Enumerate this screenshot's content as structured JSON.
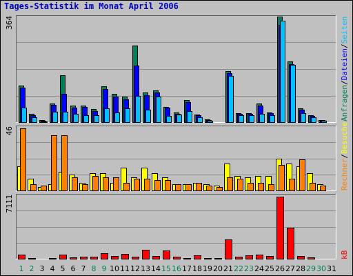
{
  "title": "Tages-Statistik im Monat April 2006",
  "colors": {
    "frame_bg": "#c0c0c0",
    "plot_bg": "#c0c0c0",
    "grid": "#8c8c8c",
    "anfragen": "#00805c",
    "dateien": "#0000ff",
    "seiten": "#00c0ff",
    "besuche": "#ffff00",
    "rechner": "#ff8000",
    "kb": "#ff0000",
    "weekday": "#000000",
    "weekend": "#00805c"
  },
  "chart_data": [
    {
      "type": "bar",
      "name": "hits-files-pages",
      "ymax_label": "364",
      "ylim": [
        0,
        364
      ],
      "grid": true,
      "categories": [
        "1",
        "2",
        "3",
        "4",
        "5",
        "6",
        "7",
        "8",
        "9",
        "10",
        "11",
        "12",
        "13",
        "14",
        "15",
        "16",
        "17",
        "18",
        "19",
        "20",
        "21",
        "22",
        "23",
        "24",
        "25",
        "26",
        "27",
        "28",
        "29",
        "30",
        "31"
      ],
      "series": [
        {
          "name": "Anfragen",
          "values": [
            127,
            30,
            10,
            65,
            164,
            60,
            58,
            47,
            125,
            100,
            90,
            264,
            105,
            111,
            55,
            35,
            78,
            28,
            12,
            0,
            177,
            32,
            32,
            65,
            36,
            364,
            210,
            50,
            25,
            10,
            0
          ]
        },
        {
          "name": "Dateien",
          "values": [
            120,
            27,
            8,
            62,
            100,
            52,
            55,
            40,
            115,
            90,
            80,
            195,
            95,
            105,
            52,
            30,
            72,
            25,
            10,
            0,
            170,
            30,
            30,
            60,
            34,
            335,
            200,
            46,
            23,
            9,
            0
          ]
        },
        {
          "name": "Seiten",
          "values": [
            53,
            20,
            5,
            37,
            38,
            30,
            27,
            25,
            50,
            35,
            50,
            92,
            45,
            90,
            24,
            28,
            40,
            20,
            8,
            0,
            160,
            25,
            25,
            30,
            25,
            350,
            198,
            33,
            20,
            8,
            0
          ]
        }
      ]
    },
    {
      "type": "bar",
      "name": "visits-sites",
      "ymax_label": "46",
      "ylim": [
        0,
        46
      ],
      "grid": true,
      "categories": [
        "1",
        "2",
        "3",
        "4",
        "5",
        "6",
        "7",
        "8",
        "9",
        "10",
        "11",
        "12",
        "13",
        "14",
        "15",
        "16",
        "17",
        "18",
        "19",
        "20",
        "21",
        "22",
        "23",
        "24",
        "25",
        "26",
        "27",
        "28",
        "29",
        "30",
        "31"
      ],
      "series": [
        {
          "name": "Besuche",
          "values": [
            18,
            9,
            3,
            5,
            14,
            12,
            6,
            13,
            13,
            6,
            17,
            10,
            17,
            13,
            10,
            5,
            5,
            6,
            5,
            4,
            20,
            11,
            10,
            11,
            11,
            24,
            20,
            18,
            13,
            5,
            0
          ]
        },
        {
          "name": "Rechner",
          "values": [
            46,
            5,
            4,
            41,
            41,
            10,
            5,
            11,
            10,
            10,
            6,
            9,
            9,
            8,
            8,
            5,
            5,
            6,
            4,
            3,
            10,
            9,
            6,
            6,
            5,
            19,
            9,
            23,
            6,
            4,
            0
          ]
        }
      ]
    },
    {
      "type": "bar",
      "name": "kbytes",
      "ymax_label": "7111",
      "ylim": [
        0,
        7111
      ],
      "grid": true,
      "categories": [
        "1",
        "2",
        "3",
        "4",
        "5",
        "6",
        "7",
        "8",
        "9",
        "10",
        "11",
        "12",
        "13",
        "14",
        "15",
        "16",
        "17",
        "18",
        "19",
        "20",
        "21",
        "22",
        "23",
        "24",
        "25",
        "26",
        "27",
        "28",
        "29",
        "30",
        "31"
      ],
      "series": [
        {
          "name": "KB",
          "values": [
            580,
            130,
            110,
            160,
            560,
            260,
            280,
            280,
            720,
            400,
            600,
            330,
            1090,
            360,
            980,
            310,
            180,
            440,
            150,
            150,
            2260,
            290,
            480,
            550,
            410,
            7111,
            3560,
            360,
            260,
            110,
            0
          ]
        }
      ]
    }
  ],
  "x_labels": [
    "1",
    "2",
    "3",
    "4",
    "5",
    "6",
    "7",
    "8",
    "9",
    "10",
    "11",
    "12",
    "13",
    "14",
    "15",
    "16",
    "17",
    "18",
    "19",
    "20",
    "21",
    "22",
    "23",
    "24",
    "25",
    "26",
    "27",
    "28",
    "29",
    "30",
    "31"
  ],
  "weekend_days": [
    "1",
    "2",
    "8",
    "9",
    "15",
    "16",
    "22",
    "23",
    "29",
    "30"
  ],
  "right_labels": {
    "top": [
      {
        "text": "Anfragen",
        "color": "#00805c"
      },
      {
        "text": "/",
        "color": "#000000"
      },
      {
        "text": "Dateien",
        "color": "#0000ff"
      },
      {
        "text": "/",
        "color": "#000000"
      },
      {
        "text": "Seiten",
        "color": "#00c0ff"
      }
    ],
    "middle": [
      {
        "text": "Rechner",
        "color": "#ff8000"
      },
      {
        "text": "/",
        "color": "#000000"
      },
      {
        "text": "Besuche",
        "color": "#ffff00"
      }
    ],
    "bottom": [
      {
        "text": "kB",
        "color": "#ff0000"
      }
    ]
  }
}
